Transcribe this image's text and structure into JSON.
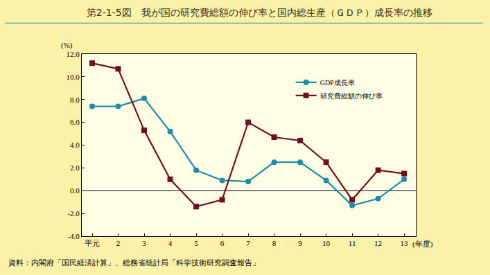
{
  "chart_data": {
    "type": "line",
    "title": "第2-1-5図　我が国の研究費総額の伸び率と国内総生産（ＧＤＰ）成長率の推移",
    "x_label": "(年度)",
    "y_label": "(%)",
    "source": "資料：内閣府「国民経済計算」、総務省統計局「科学技術研究調査報告」",
    "categories": [
      "平元",
      "2",
      "3",
      "4",
      "5",
      "6",
      "7",
      "8",
      "9",
      "10",
      "11",
      "12",
      "13"
    ],
    "series": [
      {
        "name": "GDP成長率",
        "color": "#1f8bab",
        "marker": "circle",
        "values": [
          7.4,
          7.4,
          8.1,
          5.2,
          1.8,
          0.9,
          0.8,
          2.5,
          2.5,
          0.9,
          -1.3,
          -0.7,
          1.0
        ]
      },
      {
        "name": "研究費総額の伸び率",
        "color": "#6e1020",
        "marker": "square",
        "values": [
          11.2,
          10.7,
          5.3,
          1.0,
          -1.4,
          -0.8,
          6.0,
          4.7,
          4.4,
          2.5,
          -0.8,
          1.8,
          1.5
        ]
      }
    ],
    "ylim": [
      -4,
      12
    ],
    "yticks": [
      {
        "value": -4,
        "label": "-4.0"
      },
      {
        "value": -2,
        "label": "-2.0"
      },
      {
        "value": 0,
        "label": "0.0"
      },
      {
        "value": 2,
        "label": "2.0"
      },
      {
        "value": 4,
        "label": "4.0"
      },
      {
        "value": 6,
        "label": "6.0"
      },
      {
        "value": 8,
        "label": "8.0"
      },
      {
        "value": 10,
        "label": "10.0"
      },
      {
        "value": 12,
        "label": "12.0"
      }
    ],
    "grid": false,
    "legend": "upper right"
  }
}
